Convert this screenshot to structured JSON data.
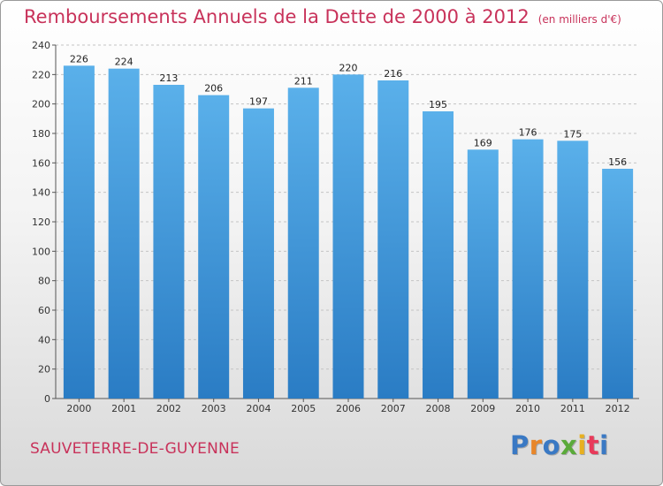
{
  "header": {
    "title": "Remboursements Annuels de la Dette de 2000 à 2012",
    "subtitle": "(en milliers d'€)"
  },
  "commune": "SAUVETERRE-DE-GUYENNE",
  "logo": {
    "text": "Proxiti",
    "letter_colors": [
      "#3a79c4",
      "#e8862a",
      "#3a79c4",
      "#5aaa3a",
      "#e8b020",
      "#e83a5a",
      "#3a79c4"
    ]
  },
  "colors": {
    "bar_top": "#5ab0ea",
    "bar_bottom": "#2a7cc4",
    "title": "#c8325a"
  },
  "chart_data": {
    "type": "bar",
    "title": "Remboursements Annuels de la Dette de 2000 à 2012",
    "subtitle": "(en milliers d'€)",
    "categories": [
      "2000",
      "2001",
      "2002",
      "2003",
      "2004",
      "2005",
      "2006",
      "2007",
      "2008",
      "2009",
      "2010",
      "2011",
      "2012"
    ],
    "values": [
      226,
      224,
      213,
      206,
      197,
      211,
      220,
      216,
      195,
      169,
      176,
      175,
      156
    ],
    "ylim": [
      0,
      240
    ],
    "yticks": [
      0,
      20,
      40,
      60,
      80,
      100,
      120,
      140,
      160,
      180,
      200,
      220,
      240
    ],
    "grid": true,
    "data_labels": true
  }
}
